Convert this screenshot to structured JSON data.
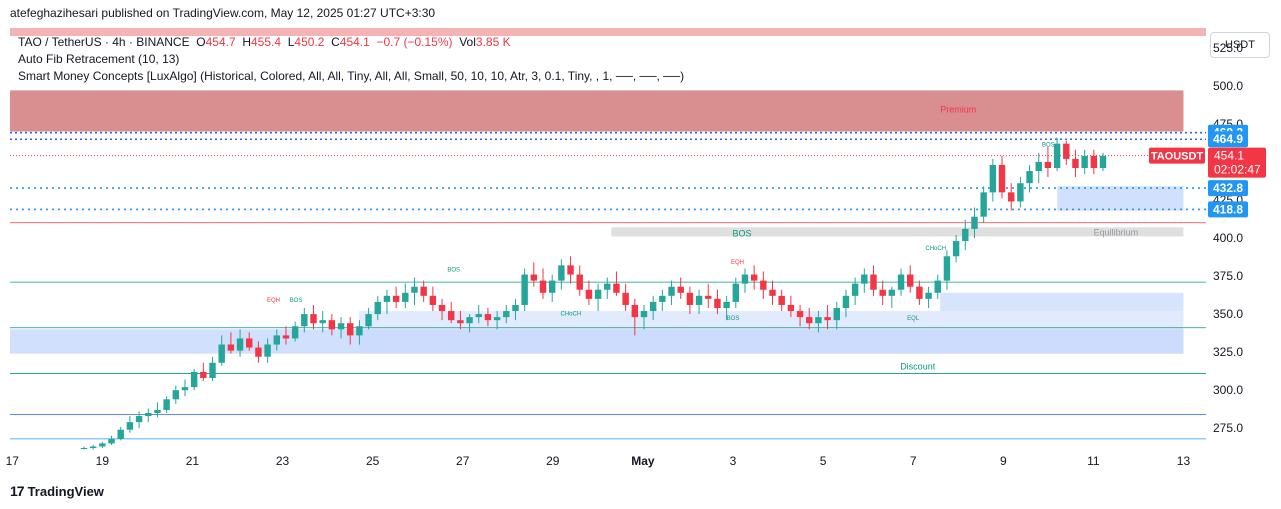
{
  "header": {
    "publisher": "atefeghazihesari published on TradingView.com, May 12, 2025 01:27 UTC+3:30"
  },
  "legend": {
    "symbol": "TAO / TetherUS · 4h · BINANCE",
    "o_label": "O",
    "o": "454.7",
    "h_label": "H",
    "h": "455.4",
    "l_label": "L",
    "l": "450.2",
    "c_label": "C",
    "c": "454.1",
    "change": "−0.7 (−0.15%)",
    "vol_label": "Vol",
    "vol": "3.85 K",
    "indicator1": "Auto Fib Retracement (10, 13)",
    "indicator2": "Smart Money Concepts [LuxAlgo] (Historical, Colored, All, All, Tiny, All, All, Small, 50, 10, 10, Atr, 3, 0.1, Tiny, , 1, ──, ──, ──)"
  },
  "currency_button": "USDT",
  "footer": {
    "logo_mark": "17",
    "logo_text": "TradingView"
  },
  "colors": {
    "up": "#26a69a",
    "down": "#f23645",
    "premium": "#d27a7d",
    "discount": "#c5d8fb",
    "fib_blue": "#2962ff"
  },
  "chart_data": {
    "type": "candlestick",
    "symbol": "TAOUSDT",
    "timeframe": "4h",
    "ylim": [
      262,
      538
    ],
    "y_ticks": [
      "525.0",
      "500.0",
      "475.0",
      "450.0",
      "425.0",
      "400.0",
      "375.0",
      "350.0",
      "325.0",
      "300.0",
      "275.0"
    ],
    "y_tick_values": [
      525,
      500,
      475,
      450,
      425,
      400,
      375,
      350,
      325,
      300,
      275
    ],
    "x_ticks": [
      "17",
      "19",
      "21",
      "23",
      "25",
      "27",
      "29",
      "May",
      "3",
      "5",
      "7",
      "9",
      "11",
      "13"
    ],
    "x_tick_days": [
      17,
      19,
      21,
      23,
      25,
      27,
      29,
      31,
      33,
      35,
      37,
      39,
      41,
      43
    ],
    "x_start_day": 16.95,
    "x_end_day": 43.5,
    "last_price": {
      "label": "TAOUSDT",
      "value": "454.1",
      "countdown": "02:02:47"
    },
    "price_labels": [
      {
        "value": 469.2,
        "text": "469.2"
      },
      {
        "value": 464.9,
        "text": "464.9"
      },
      {
        "value": 432.8,
        "text": "432.8"
      },
      {
        "value": 418.8,
        "text": "418.8"
      }
    ],
    "zones": [
      {
        "name": "premium-zone",
        "label": "Premium",
        "from_day": 16.95,
        "to_day": 43.0,
        "y1": 470,
        "y2": 497
      },
      {
        "name": "discount-zone",
        "label": "Discount",
        "from_day": 16.95,
        "to_day": 43.0,
        "y1": 324,
        "y2": 340
      },
      {
        "name": "equilibrium-zone",
        "label": "Equilibrium",
        "from_day": 30.3,
        "to_day": 43.0,
        "y1": 401,
        "y2": 407
      }
    ],
    "structure_labels": [
      {
        "text": "BOS",
        "day": 26.8,
        "y": 378
      },
      {
        "text": "EQH",
        "day": 22.8,
        "y": 358
      },
      {
        "text": "BOS",
        "day": 23.3,
        "y": 358
      },
      {
        "text": "CHoCH",
        "day": 29.4,
        "y": 349
      },
      {
        "text": "EQH",
        "day": 33.1,
        "y": 383
      },
      {
        "text": "BOS",
        "day": 33.0,
        "y": 346
      },
      {
        "text": "BOS",
        "day": 33.2,
        "y": 401
      },
      {
        "text": "EQL",
        "day": 37.0,
        "y": 346
      },
      {
        "text": "CHoCH",
        "day": 37.5,
        "y": 392
      },
      {
        "text": "BOS",
        "day": 40.0,
        "y": 460
      }
    ],
    "candles": [
      [
        262,
        263,
        261,
        262
      ],
      [
        262,
        264,
        261,
        263
      ],
      [
        263,
        266,
        262,
        265
      ],
      [
        265,
        270,
        264,
        268
      ],
      [
        268,
        276,
        267,
        274
      ],
      [
        274,
        283,
        272,
        279
      ],
      [
        279,
        286,
        275,
        283
      ],
      [
        283,
        288,
        279,
        285
      ],
      [
        285,
        292,
        282,
        287
      ],
      [
        287,
        296,
        285,
        294
      ],
      [
        294,
        303,
        291,
        300
      ],
      [
        300,
        307,
        296,
        302
      ],
      [
        302,
        314,
        300,
        312
      ],
      [
        312,
        318,
        306,
        308
      ],
      [
        308,
        322,
        306,
        318
      ],
      [
        318,
        336,
        316,
        330
      ],
      [
        330,
        338,
        324,
        326
      ],
      [
        326,
        340,
        322,
        334
      ],
      [
        334,
        338,
        326,
        328
      ],
      [
        328,
        332,
        318,
        322
      ],
      [
        322,
        334,
        318,
        330
      ],
      [
        330,
        340,
        326,
        336
      ],
      [
        336,
        342,
        330,
        334
      ],
      [
        334,
        345,
        332,
        342
      ],
      [
        342,
        354,
        338,
        350
      ],
      [
        350,
        356,
        340,
        344
      ],
      [
        344,
        352,
        338,
        346
      ],
      [
        346,
        350,
        336,
        340
      ],
      [
        340,
        348,
        334,
        344
      ],
      [
        344,
        348,
        330,
        336
      ],
      [
        336,
        346,
        330,
        342
      ],
      [
        342,
        354,
        340,
        350
      ],
      [
        350,
        362,
        346,
        358
      ],
      [
        358,
        366,
        350,
        362
      ],
      [
        362,
        368,
        354,
        358
      ],
      [
        358,
        370,
        354,
        364
      ],
      [
        364,
        374,
        356,
        368
      ],
      [
        368,
        372,
        358,
        362
      ],
      [
        362,
        368,
        352,
        356
      ],
      [
        356,
        360,
        346,
        352
      ],
      [
        352,
        358,
        344,
        346
      ],
      [
        346,
        352,
        340,
        344
      ],
      [
        344,
        350,
        338,
        348
      ],
      [
        348,
        356,
        344,
        350
      ],
      [
        350,
        354,
        342,
        346
      ],
      [
        346,
        352,
        340,
        348
      ],
      [
        348,
        356,
        344,
        352
      ],
      [
        352,
        360,
        346,
        356
      ],
      [
        356,
        380,
        352,
        376
      ],
      [
        376,
        384,
        368,
        372
      ],
      [
        372,
        380,
        360,
        364
      ],
      [
        364,
        376,
        358,
        372
      ],
      [
        372,
        386,
        366,
        382
      ],
      [
        382,
        388,
        370,
        376
      ],
      [
        376,
        382,
        362,
        366
      ],
      [
        366,
        372,
        356,
        360
      ],
      [
        360,
        370,
        352,
        366
      ],
      [
        366,
        374,
        360,
        370
      ],
      [
        370,
        378,
        362,
        364
      ],
      [
        364,
        370,
        352,
        356
      ],
      [
        356,
        360,
        336,
        348
      ],
      [
        348,
        356,
        340,
        352
      ],
      [
        352,
        362,
        346,
        358
      ],
      [
        358,
        366,
        352,
        362
      ],
      [
        362,
        372,
        356,
        368
      ],
      [
        368,
        374,
        360,
        364
      ],
      [
        364,
        368,
        350,
        356
      ],
      [
        356,
        366,
        350,
        362
      ],
      [
        362,
        370,
        354,
        360
      ],
      [
        360,
        366,
        350,
        354
      ],
      [
        354,
        362,
        346,
        358
      ],
      [
        358,
        374,
        354,
        370
      ],
      [
        370,
        380,
        364,
        376
      ],
      [
        376,
        382,
        366,
        372
      ],
      [
        372,
        378,
        360,
        366
      ],
      [
        366,
        372,
        356,
        362
      ],
      [
        362,
        366,
        352,
        356
      ],
      [
        356,
        362,
        348,
        352
      ],
      [
        352,
        356,
        342,
        348
      ],
      [
        348,
        354,
        340,
        344
      ],
      [
        344,
        352,
        338,
        348
      ],
      [
        348,
        356,
        340,
        346
      ],
      [
        346,
        358,
        340,
        354
      ],
      [
        354,
        366,
        348,
        362
      ],
      [
        362,
        374,
        356,
        370
      ],
      [
        370,
        380,
        364,
        376
      ],
      [
        376,
        382,
        362,
        366
      ],
      [
        366,
        372,
        356,
        362
      ],
      [
        362,
        368,
        354,
        366
      ],
      [
        366,
        380,
        362,
        376
      ],
      [
        376,
        382,
        364,
        368
      ],
      [
        368,
        372,
        356,
        360
      ],
      [
        360,
        368,
        354,
        364
      ],
      [
        364,
        376,
        360,
        372
      ],
      [
        372,
        392,
        366,
        388
      ],
      [
        388,
        402,
        384,
        398
      ],
      [
        398,
        412,
        392,
        406
      ],
      [
        406,
        420,
        400,
        414
      ],
      [
        414,
        434,
        410,
        430
      ],
      [
        430,
        452,
        424,
        448
      ],
      [
        448,
        454,
        426,
        430
      ],
      [
        430,
        436,
        418,
        424
      ],
      [
        424,
        440,
        420,
        436
      ],
      [
        436,
        448,
        430,
        444
      ],
      [
        444,
        456,
        436,
        450
      ],
      [
        450,
        460,
        440,
        446
      ],
      [
        446,
        466,
        444,
        462
      ],
      [
        462,
        464,
        448,
        452
      ],
      [
        452,
        458,
        440,
        446
      ],
      [
        446,
        458,
        442,
        454
      ],
      [
        454,
        458,
        442,
        446
      ],
      [
        446,
        456,
        444,
        454
      ]
    ]
  }
}
